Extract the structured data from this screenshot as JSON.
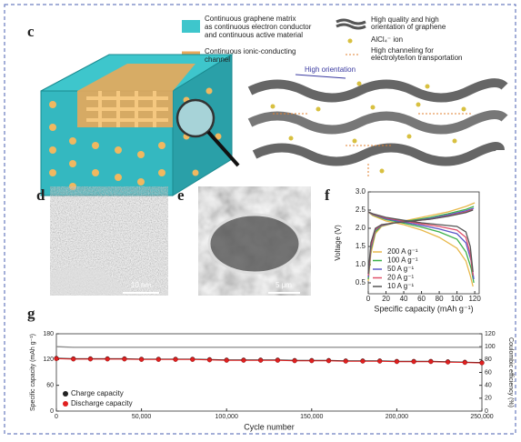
{
  "panels": {
    "c": {
      "label": "c",
      "legend_left": [
        "Continuous graphene matrix",
        "as continuous electron conductor",
        "and continuous active material",
        "Continuous ionic-conducting",
        "channel"
      ],
      "legend_right": [
        "High quality and high",
        "orientation of graphene",
        "AlCl₄⁻ ion",
        "High channeling for",
        "electrolyte/ion transportation"
      ],
      "annotation": "High orientation"
    },
    "d": {
      "label": "d",
      "scale_bar": "10 nm"
    },
    "e": {
      "label": "e",
      "scale_bar": "5 μm"
    },
    "f": {
      "label": "f"
    },
    "g": {
      "label": "g"
    }
  },
  "chart_data": [
    {
      "type": "line",
      "xlabel": "Specific capacity (mAh g⁻¹)",
      "ylabel": "Voltage (V)",
      "xlim": [
        0,
        125
      ],
      "xticks": [
        0,
        20,
        40,
        60,
        80,
        100,
        120
      ],
      "ylim": [
        0.2,
        3.0
      ],
      "yticks": [
        0.5,
        {
          "value": 1,
          "label": "1.0"
        },
        1.5,
        {
          "value": 2,
          "label": "2.0"
        },
        2.5,
        {
          "value": 3,
          "label": "3.0"
        }
      ],
      "legend": "lower center",
      "series": [
        {
          "name": "200 A g⁻¹",
          "color": "#e8b84a",
          "x": [
            0,
            3,
            8,
            15,
            30,
            50,
            70,
            90,
            110,
            120,
            null,
            0,
            5,
            20,
            40,
            60,
            80,
            100,
            110,
            115,
            118
          ],
          "values": [
            0.55,
            1.3,
            1.85,
            2.05,
            2.15,
            2.25,
            2.35,
            2.45,
            2.6,
            2.7,
            null,
            2.45,
            2.35,
            2.2,
            2.1,
            1.95,
            1.75,
            1.45,
            1.1,
            0.7,
            0.4
          ]
        },
        {
          "name": "100 A g⁻¹",
          "color": "#3cb04a",
          "x": [
            0,
            3,
            8,
            15,
            30,
            50,
            70,
            90,
            110,
            119,
            null,
            0,
            5,
            20,
            40,
            60,
            80,
            100,
            110,
            116,
            119
          ],
          "values": [
            0.6,
            1.4,
            1.9,
            2.07,
            2.15,
            2.22,
            2.3,
            2.4,
            2.52,
            2.6,
            null,
            2.45,
            2.37,
            2.24,
            2.14,
            2.03,
            1.9,
            1.7,
            1.35,
            0.9,
            0.5
          ]
        },
        {
          "name": "50 A g⁻¹",
          "color": "#5a58c8",
          "x": [
            0,
            3,
            8,
            15,
            30,
            50,
            70,
            90,
            110,
            119,
            null,
            0,
            5,
            20,
            40,
            60,
            80,
            100,
            110,
            116,
            119
          ],
          "values": [
            0.65,
            1.45,
            1.95,
            2.08,
            2.15,
            2.2,
            2.27,
            2.37,
            2.48,
            2.55,
            null,
            2.45,
            2.38,
            2.26,
            2.17,
            2.08,
            1.98,
            1.85,
            1.6,
            1.1,
            0.6
          ]
        },
        {
          "name": "20 A g⁻¹",
          "color": "#e0506a",
          "x": [
            0,
            3,
            8,
            15,
            30,
            50,
            70,
            90,
            110,
            118,
            null,
            0,
            5,
            20,
            40,
            60,
            80,
            100,
            110,
            115,
            118
          ],
          "values": [
            0.7,
            1.5,
            1.97,
            2.09,
            2.15,
            2.2,
            2.25,
            2.34,
            2.45,
            2.52,
            null,
            2.45,
            2.39,
            2.28,
            2.2,
            2.12,
            2.05,
            1.95,
            1.75,
            1.3,
            0.7
          ]
        },
        {
          "name": "10 A g⁻¹",
          "color": "#555555",
          "x": [
            0,
            3,
            8,
            15,
            30,
            50,
            70,
            90,
            110,
            118,
            null,
            0,
            5,
            20,
            40,
            60,
            80,
            100,
            110,
            115,
            118
          ],
          "values": [
            0.75,
            1.6,
            2.0,
            2.1,
            2.15,
            2.2,
            2.25,
            2.33,
            2.43,
            2.5,
            null,
            2.45,
            2.4,
            2.3,
            2.22,
            2.15,
            2.1,
            2.05,
            1.9,
            1.5,
            0.8
          ]
        }
      ]
    },
    {
      "type": "line",
      "xlabel": "Cycle number",
      "ylabel": "Specific capacity (mAh g⁻¹)",
      "y2label": "Coulombic efficiency (%)",
      "xlim": [
        0,
        250000
      ],
      "xticks": [
        0,
        {
          "value": 50000,
          "label": "50,000"
        },
        {
          "value": 100000,
          "label": "100,000"
        },
        {
          "value": 150000,
          "label": "150,000"
        },
        {
          "value": 200000,
          "label": "200,000"
        },
        {
          "value": 250000,
          "label": "250,000"
        }
      ],
      "ylim": [
        0,
        180
      ],
      "yticks": [
        0,
        60,
        120,
        180
      ],
      "y2lim": [
        0,
        120
      ],
      "y2ticks": [
        0,
        20,
        40,
        60,
        80,
        100,
        120
      ],
      "legend": "lower left",
      "x": [
        0,
        10000,
        20000,
        30000,
        40000,
        50000,
        60000,
        70000,
        80000,
        90000,
        100000,
        110000,
        120000,
        130000,
        140000,
        150000,
        160000,
        170000,
        180000,
        190000,
        200000,
        210000,
        220000,
        230000,
        240000,
        250000
      ],
      "series": [
        {
          "name": "Charge capacity",
          "color": "#222222",
          "marker": "circle",
          "values": [
            123,
            122,
            122,
            122,
            122,
            121,
            121,
            121,
            121,
            120,
            119,
            119,
            119,
            119,
            118,
            118,
            118,
            117,
            117,
            117,
            116,
            116,
            116,
            115,
            114,
            113
          ]
        },
        {
          "name": "Discharge capacity",
          "color": "#e02020",
          "marker": "circle",
          "values": [
            122,
            121,
            121,
            121,
            121,
            120,
            120,
            120,
            120,
            119,
            118,
            118,
            118,
            118,
            117,
            117,
            117,
            116,
            116,
            116,
            115,
            115,
            115,
            114,
            113,
            112
          ]
        },
        {
          "color": "#888888",
          "axis": "y2",
          "values": [
            100,
            99,
            99,
            99,
            99,
            99,
            99,
            99,
            99,
            99,
            99,
            99,
            99,
            99,
            99,
            99,
            99,
            99,
            99,
            99,
            99,
            99,
            99,
            99,
            99,
            99
          ]
        }
      ]
    }
  ]
}
